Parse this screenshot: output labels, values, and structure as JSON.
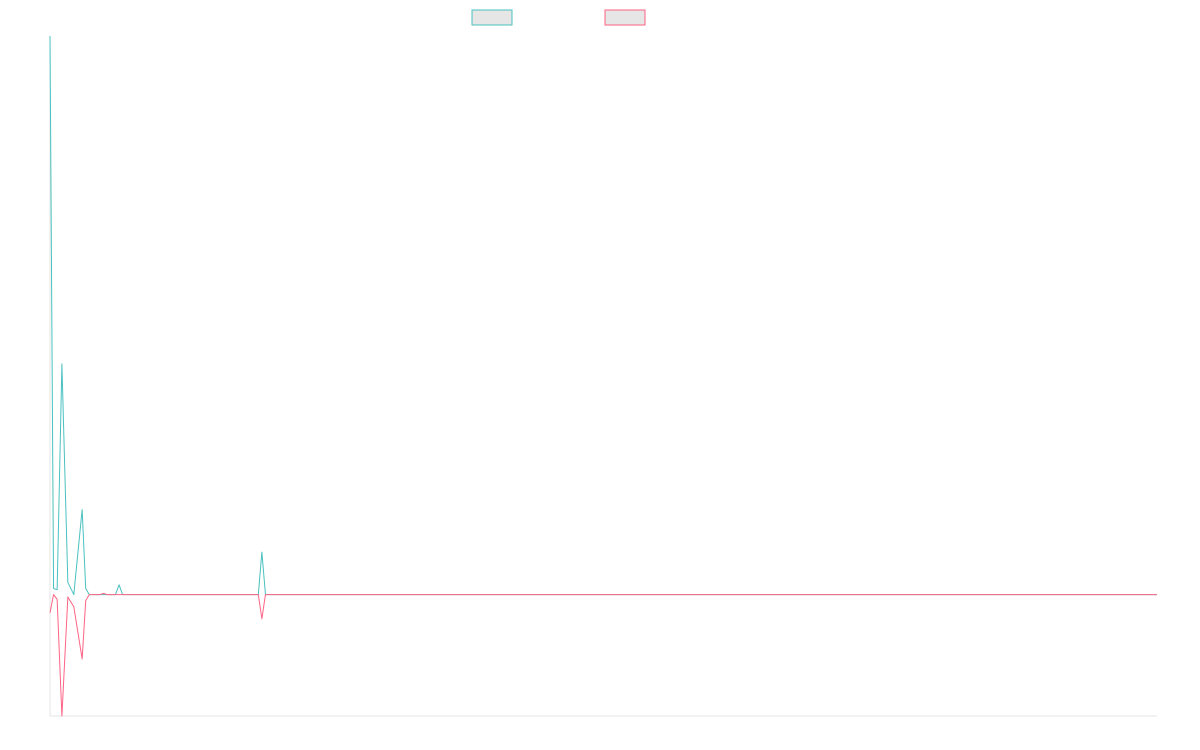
{
  "chart_data": {
    "type": "line",
    "title": "",
    "xlabel": "",
    "ylabel": "",
    "grid": false,
    "legend_position": "top-center",
    "x_count": 94,
    "ylim": [
      -1,
      4.6
    ],
    "colors": {
      "series_1": "#4bc0c0",
      "series_2": "#ff6384",
      "swatch_fill": "#e6e6e6",
      "axis": "#e6e6e6"
    },
    "series": [
      {
        "name": "",
        "points": [
          [
            0,
            4.6
          ],
          [
            0.3,
            0.05
          ],
          [
            0.6,
            0.04
          ],
          [
            1,
            1.9
          ],
          [
            1.5,
            0.1
          ],
          [
            2,
            0
          ],
          [
            2.7,
            0.7
          ],
          [
            3,
            0.05
          ],
          [
            3.3,
            0
          ],
          [
            5.5,
            0
          ],
          [
            5.8,
            0.08
          ],
          [
            6.1,
            0
          ],
          [
            17.5,
            0
          ],
          [
            17.8,
            0.35
          ],
          [
            18.1,
            0
          ],
          [
            93,
            0
          ]
        ]
      },
      {
        "name": "",
        "points": [
          [
            0,
            -0.15
          ],
          [
            0.3,
            0
          ],
          [
            0.6,
            -0.04
          ],
          [
            1,
            -1.0
          ],
          [
            1.5,
            -0.02
          ],
          [
            2,
            -0.1
          ],
          [
            2.7,
            -0.53
          ],
          [
            3,
            -0.05
          ],
          [
            3.3,
            0
          ],
          [
            4.2,
            0
          ],
          [
            4.5,
            0.01
          ],
          [
            4.8,
            0
          ],
          [
            17.5,
            0
          ],
          [
            17.8,
            -0.2
          ],
          [
            18.1,
            0
          ],
          [
            93,
            0
          ]
        ]
      }
    ]
  }
}
